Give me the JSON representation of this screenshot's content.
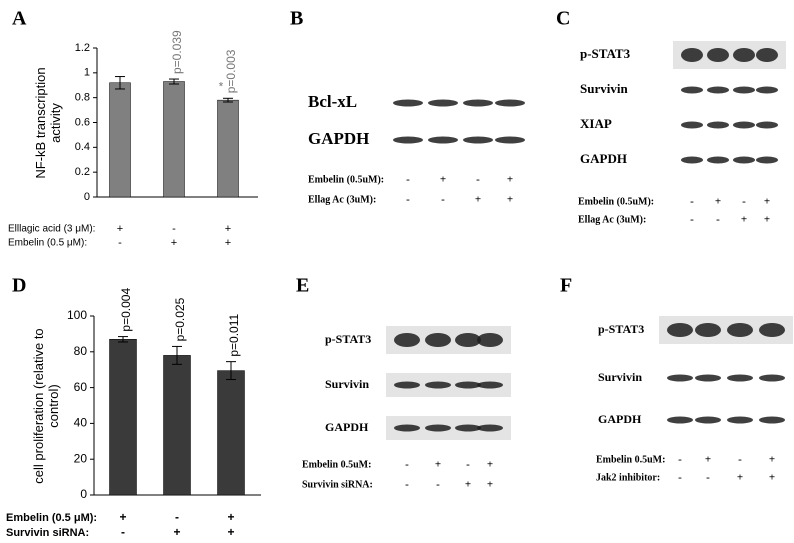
{
  "chart_data": [
    {
      "type": "bar",
      "panel": "A",
      "ylabel": "NF-kB transcription activity",
      "ylim": [
        0,
        1.2
      ],
      "yticks": [
        0,
        0.2,
        0.4,
        0.6,
        0.8,
        1,
        1.2
      ],
      "series": [
        {
          "color": "#808080",
          "values": [
            0.92,
            0.93,
            0.78
          ],
          "errors": [
            0.05,
            0.02,
            0.015
          ]
        }
      ],
      "annotations": [
        null,
        "p=0.039",
        "p=0.003"
      ],
      "markers": [
        null,
        null,
        "*"
      ],
      "conditions": [
        {
          "label": "Elllagic acid (3 μM):",
          "signs": [
            "+",
            "-",
            "+"
          ]
        },
        {
          "label": "Embelin (0.5 μM):",
          "signs": [
            "-",
            "+",
            "+"
          ]
        }
      ]
    },
    {
      "type": "bar",
      "panel": "D",
      "ylabel": "cell proliferation (relative to control)",
      "ylim": [
        0,
        100
      ],
      "yticks": [
        0,
        20,
        40,
        60,
        80,
        100
      ],
      "series": [
        {
          "color": "#3a3a3a",
          "values": [
            87,
            78,
            69.5
          ],
          "errors": [
            1.5,
            5,
            5
          ]
        }
      ],
      "annotations": [
        "p=0.004",
        "p=0.025",
        "p=0.011"
      ],
      "markers": [
        null,
        null,
        null
      ],
      "conditions": [
        {
          "label": "Embelin (0.5 μM):",
          "signs": [
            "+",
            "-",
            "+"
          ]
        },
        {
          "label": "Survivin siRNA:",
          "signs": [
            "-",
            "+",
            "+"
          ]
        }
      ]
    }
  ],
  "blots": [
    {
      "panel": "B",
      "rows": [
        "Bcl-xL",
        "GAPDH"
      ],
      "conditions": [
        {
          "label": "Embelin (0.5uM):",
          "signs": [
            "-",
            "+",
            "-",
            "+"
          ]
        },
        {
          "label": "Ellag Ac (3uM):",
          "signs": [
            "-",
            "-",
            "+",
            "+"
          ]
        }
      ]
    },
    {
      "panel": "C",
      "rows": [
        "p-STAT3",
        "Survivin",
        "XIAP",
        "GAPDH"
      ],
      "conditions": [
        {
          "label": "Embelin (0.5uM):",
          "signs": [
            "-",
            "+",
            "-",
            "+"
          ]
        },
        {
          "label": "Ellag Ac (3uM):",
          "signs": [
            "-",
            "-",
            "+",
            "+"
          ]
        }
      ]
    },
    {
      "panel": "E",
      "rows": [
        "p-STAT3",
        "Survivin",
        "GAPDH"
      ],
      "conditions": [
        {
          "label": "Embelin 0.5uM:",
          "signs": [
            "-",
            "+",
            "-",
            "+"
          ]
        },
        {
          "label": "Survivin siRNA:",
          "signs": [
            "-",
            "-",
            "+",
            "+"
          ]
        }
      ]
    },
    {
      "panel": "F",
      "rows": [
        "p-STAT3",
        "Survivin",
        "GAPDH"
      ],
      "conditions": [
        {
          "label": "Embelin 0.5uM:",
          "signs": [
            "-",
            "+",
            "-",
            "+"
          ]
        },
        {
          "label": "Jak2 inhibitor:",
          "signs": [
            "-",
            "-",
            "+",
            "+"
          ]
        }
      ]
    }
  ]
}
